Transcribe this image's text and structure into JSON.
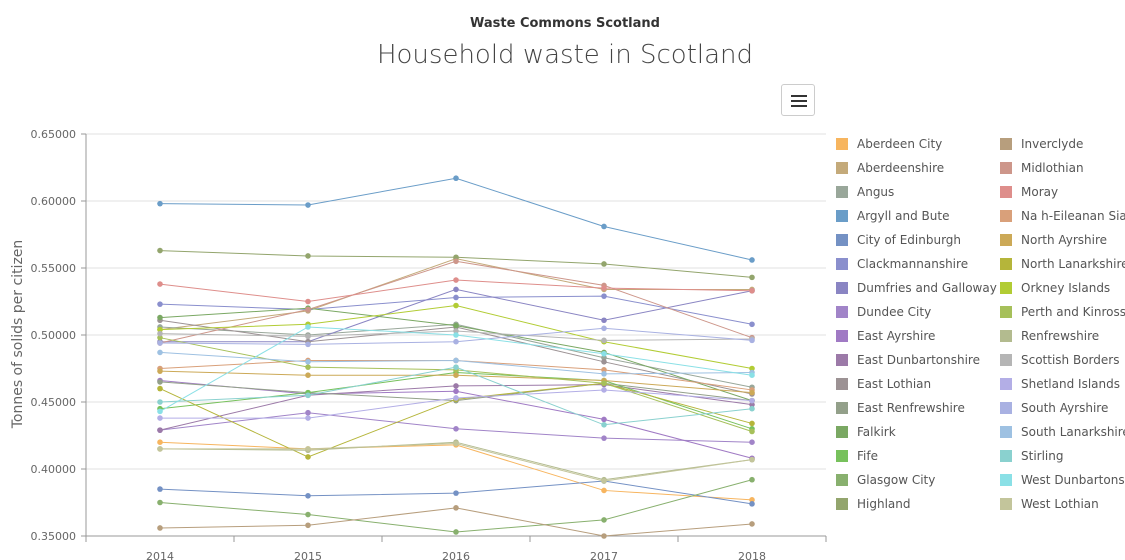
{
  "header": {
    "supertitle": "Waste Commons Scotland",
    "title": "Household waste in Scotland",
    "menu_icon": "hamburger-menu-icon"
  },
  "chart_data": {
    "type": "line",
    "title": "Household waste in Scotland",
    "subtitle": "Waste Commons Scotland",
    "xlabel": "",
    "ylabel": "Tonnes of solids per citizen",
    "x": [
      "2014",
      "2015",
      "2016",
      "2017",
      "2018"
    ],
    "ylim": [
      0.35,
      0.65
    ],
    "y_ticks": [
      "0.35000",
      "0.40000",
      "0.45000",
      "0.50000",
      "0.55000",
      "0.60000",
      "0.65000"
    ],
    "grid": true,
    "legend_position": "right",
    "series": [
      {
        "name": "Aberdeen City",
        "color": "#f7b55f",
        "values": [
          0.42,
          0.415,
          0.418,
          0.384,
          0.377
        ]
      },
      {
        "name": "Aberdeenshire",
        "color": "#c4aa7a",
        "values": [
          0.504,
          0.518,
          0.557,
          0.534,
          0.534
        ]
      },
      {
        "name": "Angus",
        "color": "#99a79a",
        "values": [
          0.506,
          0.5,
          0.508,
          0.483,
          0.461
        ]
      },
      {
        "name": "Argyll and Bute",
        "color": "#6a9dc8",
        "values": [
          0.598,
          0.597,
          0.617,
          0.581,
          0.556
        ]
      },
      {
        "name": "City of Edinburgh",
        "color": "#7491c4",
        "values": [
          0.385,
          0.38,
          0.382,
          0.391,
          0.374
        ]
      },
      {
        "name": "Clackmannanshire",
        "color": "#8a8fcd",
        "values": [
          0.523,
          0.519,
          0.528,
          0.529,
          0.508
        ]
      },
      {
        "name": "Dumfries and Galloway",
        "color": "#8a85c3",
        "values": [
          0.495,
          0.495,
          0.534,
          0.511,
          0.533
        ]
      },
      {
        "name": "Dundee City",
        "color": "#a184c8",
        "values": [
          0.429,
          0.442,
          0.43,
          0.423,
          0.42
        ]
      },
      {
        "name": "East Ayrshire",
        "color": "#a07ac4",
        "values": [
          0.466,
          0.456,
          0.458,
          0.437,
          0.408
        ]
      },
      {
        "name": "East Dunbartonshire",
        "color": "#9c7aa8",
        "values": [
          0.429,
          0.455,
          0.462,
          0.463,
          0.448
        ]
      },
      {
        "name": "East Lothian",
        "color": "#9c9294",
        "values": [
          0.511,
          0.495,
          0.506,
          0.48,
          0.456
        ]
      },
      {
        "name": "East Renfrewshire",
        "color": "#93a08a",
        "values": [
          0.465,
          0.457,
          0.451,
          0.464,
          0.451
        ]
      },
      {
        "name": "Falkirk",
        "color": "#7aa863",
        "values": [
          0.513,
          0.52,
          0.507,
          0.487,
          0.451
        ]
      },
      {
        "name": "Fife",
        "color": "#77c15c",
        "values": [
          0.445,
          0.457,
          0.472,
          0.466,
          0.43
        ]
      },
      {
        "name": "Glasgow City",
        "color": "#88b06e",
        "values": [
          0.375,
          0.366,
          0.353,
          0.362,
          0.392
        ]
      },
      {
        "name": "Highland",
        "color": "#93a56d",
        "values": [
          0.563,
          0.559,
          0.558,
          0.553,
          0.543
        ]
      },
      {
        "name": "Inverclyde",
        "color": "#b79e7d",
        "values": [
          0.356,
          0.358,
          0.371,
          0.35,
          0.359
        ]
      },
      {
        "name": "Midlothian",
        "color": "#cd968a",
        "values": [
          0.494,
          0.519,
          0.555,
          0.537,
          0.498
        ]
      },
      {
        "name": "Moray",
        "color": "#de8e8b",
        "values": [
          0.538,
          0.525,
          0.541,
          0.535,
          0.533
        ]
      },
      {
        "name": "Na h-Eileanan Siar",
        "color": "#d9a07a",
        "values": [
          0.475,
          0.481,
          0.481,
          0.474,
          0.459
        ]
      },
      {
        "name": "North Ayrshire",
        "color": "#cca957",
        "values": [
          0.473,
          0.47,
          0.47,
          0.466,
          0.457
        ]
      },
      {
        "name": "North Lanarkshire",
        "color": "#b5b53a",
        "values": [
          0.46,
          0.409,
          0.452,
          0.464,
          0.434
        ]
      },
      {
        "name": "Orkney Islands",
        "color": "#b2cc34",
        "values": [
          0.504,
          0.508,
          0.522,
          0.495,
          0.475
        ]
      },
      {
        "name": "Perth and Kinross",
        "color": "#a6c05a",
        "values": [
          0.498,
          0.476,
          0.474,
          0.464,
          0.428
        ]
      },
      {
        "name": "Renfrewshire",
        "color": "#b3bb8f",
        "values": [
          0.415,
          0.414,
          0.42,
          0.392,
          0.407
        ]
      },
      {
        "name": "Scottish Borders",
        "color": "#b5b5b5",
        "values": [
          0.501,
          0.499,
          0.503,
          0.496,
          0.497
        ]
      },
      {
        "name": "Shetland Islands",
        "color": "#b3aee6",
        "values": [
          0.438,
          0.438,
          0.453,
          0.459,
          0.451
        ]
      },
      {
        "name": "South Ayrshire",
        "color": "#a9b1e2",
        "values": [
          0.494,
          0.493,
          0.495,
          0.505,
          0.496
        ]
      },
      {
        "name": "South Lanarkshire",
        "color": "#9ec1e2",
        "values": [
          0.487,
          0.48,
          0.481,
          0.471,
          0.472
        ]
      },
      {
        "name": "Stirling",
        "color": "#8ad1cf",
        "values": [
          0.45,
          0.455,
          0.476,
          0.433,
          0.445
        ]
      },
      {
        "name": "West Dunbartonshire",
        "color": "#8ae0e6",
        "values": [
          0.443,
          0.506,
          0.5,
          0.486,
          0.47
        ]
      },
      {
        "name": "West Lothian",
        "color": "#c3c59b",
        "values": [
          0.415,
          0.415,
          0.419,
          0.391,
          0.407
        ]
      }
    ]
  }
}
